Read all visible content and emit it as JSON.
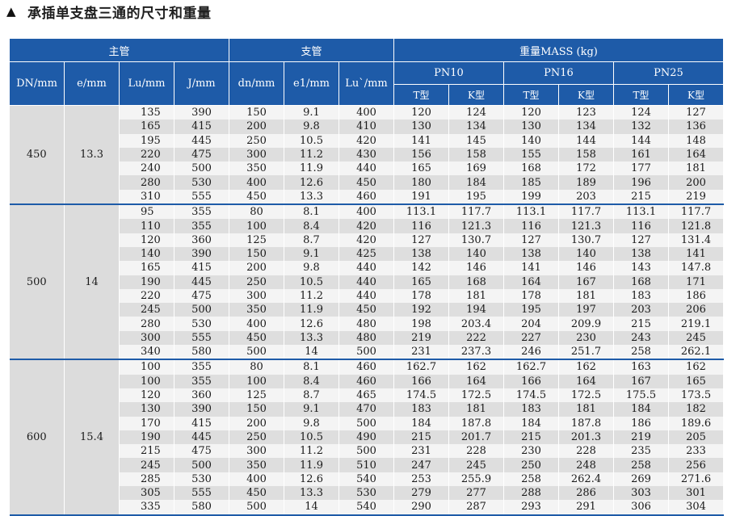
{
  "title": "承插单支盘三通的尺寸和重量",
  "header": {
    "main_pipe": "主管",
    "branch_pipe": "支管",
    "mass": "重量MASS (kg)",
    "dn": "DN/mm",
    "e": "e/mm",
    "lu": "Lu/mm",
    "j": "J/mm",
    "dn_branch": "dn/mm",
    "e1": "e1/mm",
    "lu2": "Lu`/mm",
    "pn10": "PN10",
    "pn16": "PN16",
    "pn25": "PN25",
    "t_type": "T型",
    "k_type": "K型"
  },
  "groups": [
    {
      "dn": "450",
      "e": "13.3",
      "rows": [
        [
          "135",
          "390",
          "150",
          "9.1",
          "400",
          "120",
          "124",
          "120",
          "123",
          "124",
          "127"
        ],
        [
          "165",
          "415",
          "200",
          "9.8",
          "410",
          "130",
          "134",
          "130",
          "134",
          "132",
          "136"
        ],
        [
          "195",
          "445",
          "250",
          "10.5",
          "420",
          "141",
          "145",
          "140",
          "144",
          "144",
          "148"
        ],
        [
          "220",
          "475",
          "300",
          "11.2",
          "430",
          "156",
          "158",
          "155",
          "158",
          "161",
          "164"
        ],
        [
          "240",
          "500",
          "350",
          "11.9",
          "440",
          "165",
          "169",
          "168",
          "172",
          "177",
          "181"
        ],
        [
          "280",
          "530",
          "400",
          "12.6",
          "450",
          "180",
          "184",
          "185",
          "189",
          "196",
          "200"
        ],
        [
          "310",
          "555",
          "450",
          "13.3",
          "460",
          "191",
          "195",
          "199",
          "203",
          "215",
          "219"
        ]
      ]
    },
    {
      "dn": "500",
      "e": "14",
      "rows": [
        [
          "95",
          "355",
          "80",
          "8.1",
          "400",
          "113.1",
          "117.7",
          "113.1",
          "117.7",
          "113.1",
          "117.7"
        ],
        [
          "110",
          "355",
          "100",
          "8.4",
          "420",
          "116",
          "121.3",
          "116",
          "121.3",
          "116",
          "121.8"
        ],
        [
          "120",
          "360",
          "125",
          "8.7",
          "420",
          "127",
          "130.7",
          "127",
          "130.7",
          "127",
          "131.4"
        ],
        [
          "140",
          "390",
          "150",
          "9.1",
          "425",
          "138",
          "140",
          "138",
          "140",
          "138",
          "141"
        ],
        [
          "165",
          "415",
          "200",
          "9.8",
          "440",
          "142",
          "146",
          "141",
          "146",
          "143",
          "147.8"
        ],
        [
          "190",
          "445",
          "250",
          "10.5",
          "440",
          "165",
          "168",
          "164",
          "167",
          "168",
          "171"
        ],
        [
          "220",
          "475",
          "300",
          "11.2",
          "440",
          "178",
          "181",
          "178",
          "181",
          "183",
          "186"
        ],
        [
          "245",
          "500",
          "350",
          "11.9",
          "450",
          "192",
          "194",
          "195",
          "197",
          "203",
          "206"
        ],
        [
          "280",
          "530",
          "400",
          "12.6",
          "480",
          "198",
          "203.4",
          "204",
          "209.9",
          "215",
          "219.1"
        ],
        [
          "300",
          "555",
          "450",
          "13.3",
          "480",
          "219",
          "222",
          "227",
          "230",
          "243",
          "245"
        ],
        [
          "340",
          "580",
          "500",
          "14",
          "500",
          "231",
          "237.3",
          "246",
          "251.7",
          "258",
          "262.1"
        ]
      ]
    },
    {
      "dn": "600",
      "e": "15.4",
      "rows": [
        [
          "100",
          "355",
          "80",
          "8.1",
          "460",
          "162.7",
          "162",
          "162.7",
          "162",
          "163",
          "162"
        ],
        [
          "100",
          "355",
          "100",
          "8.4",
          "460",
          "166",
          "164",
          "166",
          "164",
          "167",
          "165"
        ],
        [
          "120",
          "360",
          "125",
          "8.7",
          "465",
          "174.5",
          "172.5",
          "174.5",
          "172.5",
          "175.5",
          "173.5"
        ],
        [
          "130",
          "390",
          "150",
          "9.1",
          "470",
          "183",
          "181",
          "183",
          "181",
          "184",
          "182"
        ],
        [
          "170",
          "415",
          "200",
          "9.8",
          "500",
          "184",
          "187.8",
          "184",
          "187.8",
          "186",
          "189.6"
        ],
        [
          "190",
          "445",
          "250",
          "10.5",
          "490",
          "215",
          "201.7",
          "215",
          "201.3",
          "219",
          "205"
        ],
        [
          "215",
          "475",
          "300",
          "11.2",
          "500",
          "231",
          "228",
          "230",
          "228",
          "235",
          "233"
        ],
        [
          "245",
          "500",
          "350",
          "11.9",
          "510",
          "247",
          "245",
          "250",
          "248",
          "258",
          "256"
        ],
        [
          "285",
          "530",
          "400",
          "12.6",
          "540",
          "253",
          "255.9",
          "258",
          "262.4",
          "269",
          "271.6"
        ],
        [
          "305",
          "555",
          "450",
          "13.3",
          "530",
          "279",
          "277",
          "288",
          "286",
          "303",
          "301"
        ],
        [
          "335",
          "580",
          "500",
          "14",
          "540",
          "290",
          "287",
          "293",
          "291",
          "306",
          "304"
        ]
      ]
    }
  ]
}
